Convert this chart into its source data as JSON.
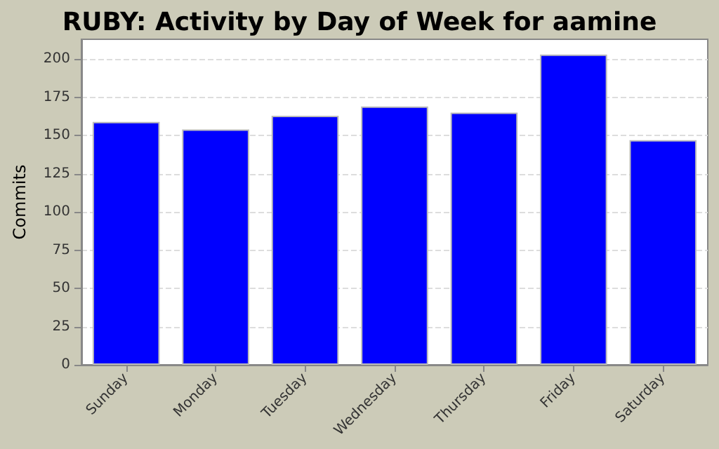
{
  "chart_data": {
    "type": "bar",
    "title": "RUBY: Activity by Day of Week for aamine",
    "ylabel": "Commits",
    "categories": [
      "Sunday",
      "Monday",
      "Tuesday",
      "Wednesday",
      "Thursday",
      "Friday",
      "Saturday"
    ],
    "values": [
      159,
      154,
      163,
      169,
      165,
      203,
      147
    ],
    "color": "#0000ff",
    "ylim": [
      0,
      213
    ],
    "yticks": [
      0,
      25,
      50,
      75,
      100,
      125,
      150,
      175,
      200
    ],
    "grid": "y"
  }
}
